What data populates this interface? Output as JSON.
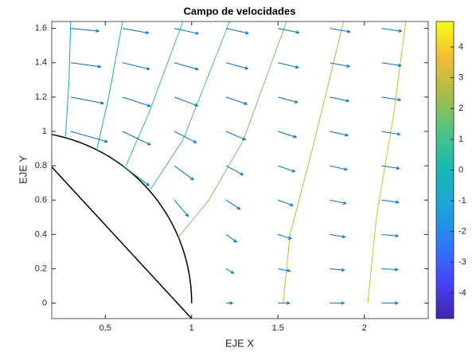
{
  "chart_data": {
    "type": "quiver",
    "title": "Campo de velocidades",
    "x_label": "EJE X",
    "y_label": "EJE Y",
    "xlim": [
      0.19,
      2.37
    ],
    "ylim": [
      -0.09,
      1.64
    ],
    "xticks": [
      0.5,
      1,
      1.5,
      2
    ],
    "yticks": [
      0,
      0.2,
      0.4,
      0.6,
      0.8,
      1,
      1.2,
      1.4,
      1.6
    ],
    "arrow_color": "#0072bd",
    "cylinder_radius": 1,
    "cylinder_color": "#000000",
    "x": [
      0.3,
      0.3,
      0.3,
      0.3,
      0.6,
      0.6,
      0.6,
      0.6,
      0.6,
      0.9,
      0.9,
      0.9,
      0.9,
      0.9,
      0.9,
      1.2,
      1.2,
      1.2,
      1.2,
      1.2,
      1.2,
      1.2,
      1.2,
      1.2,
      1.5,
      1.5,
      1.5,
      1.5,
      1.5,
      1.5,
      1.5,
      1.5,
      1.5,
      1.8,
      1.8,
      1.8,
      1.8,
      1.8,
      1.8,
      1.8,
      1.8,
      1.8,
      2.1,
      2.1,
      2.1,
      2.1,
      2.1,
      2.1,
      2.1,
      2.1,
      2.1
    ],
    "y": [
      1.0,
      1.2,
      1.4,
      1.6,
      0.8,
      1.0,
      1.2,
      1.4,
      1.6,
      0.6,
      0.8,
      1.0,
      1.2,
      1.4,
      1.6,
      0,
      0.2,
      0.4,
      0.6,
      0.8,
      1.0,
      1.2,
      1.4,
      1.6,
      0,
      0.2,
      0.4,
      0.6,
      0.8,
      1.0,
      1.2,
      1.4,
      1.6,
      0,
      0.2,
      0.4,
      0.6,
      0.8,
      1.0,
      1.2,
      1.4,
      1.6,
      0,
      0.2,
      0.4,
      0.6,
      0.8,
      1.0,
      1.2,
      1.4,
      1.6
    ],
    "u": [
      1.766,
      1.577,
      1.445,
      1.352,
      1.28,
      1.346,
      1.333,
      1.297,
      1.258,
      0.671,
      0.919,
      1.058,
      1.124,
      1.15,
      1.154,
      0.306,
      0.361,
      0.5,
      0.667,
      0.815,
      0.926,
      1.0,
      1.045,
      1.07,
      0.556,
      0.579,
      0.64,
      0.723,
      0.807,
      0.882,
      0.941,
      0.984,
      1.013,
      0.691,
      0.703,
      0.734,
      0.778,
      0.827,
      0.875,
      0.918,
      0.953,
      0.98,
      0.773,
      0.779,
      0.797,
      0.822,
      0.852,
      0.883,
      0.913,
      0.94,
      0.962
    ],
    "v": [
      -0.505,
      -0.308,
      -0.2,
      -0.137,
      -0.96,
      -0.649,
      -0.444,
      -0.312,
      -0.225,
      -0.789,
      -0.685,
      -0.549,
      -0.427,
      -0.328,
      -0.254,
      0,
      -0.219,
      -0.375,
      -0.444,
      -0.444,
      -0.403,
      -0.347,
      -0.291,
      -0.24,
      0,
      -0.114,
      -0.207,
      -0.264,
      -0.287,
      -0.284,
      -0.264,
      -0.237,
      -0.207,
      0,
      -0.067,
      -0.125,
      -0.167,
      -0.191,
      -0.2,
      -0.197,
      -0.186,
      -0.171,
      0,
      -0.042,
      -0.08,
      -0.111,
      -0.132,
      -0.143,
      -0.147,
      -0.145,
      -0.138
    ],
    "contours": [
      {
        "color": "#1ba0c8",
        "x": [
          0.27,
          0.29,
          0.3
        ],
        "y": [
          0.97,
          1.3,
          1.64
        ]
      },
      {
        "color": "#20a8b8",
        "x": [
          0.45,
          0.52,
          0.6
        ],
        "y": [
          0.89,
          1.2,
          1.64
        ]
      },
      {
        "color": "#33b5a0",
        "x": [
          0.62,
          0.75,
          0.95
        ],
        "y": [
          0.8,
          1.1,
          1.64
        ]
      },
      {
        "color": "#4cbb80",
        "x": [
          0.76,
          0.95,
          1.22
        ],
        "y": [
          0.66,
          0.95,
          1.64
        ]
      },
      {
        "color": "#80c060",
        "x": [
          0.92,
          1.1,
          1.3,
          1.55
        ],
        "y": [
          0.38,
          0.6,
          0.95,
          1.64
        ]
      },
      {
        "color": "#b0c040",
        "x": [
          1.53,
          1.57,
          1.7,
          1.88
        ],
        "y": [
          0,
          0.4,
          0.9,
          1.64
        ]
      },
      {
        "color": "#c8c030",
        "x": [
          2.02,
          2.07,
          2.17,
          2.24
        ],
        "y": [
          0,
          0.5,
          1.1,
          1.64
        ]
      }
    ],
    "colorbar": {
      "clim": [
        -4.83,
        4.83
      ],
      "ticks": [
        -4,
        -3,
        -2,
        -1,
        0,
        1,
        2,
        3,
        4
      ],
      "colormap": [
        "#3e26a8",
        "#4743f8",
        "#2c7bf6",
        "#1fa2db",
        "#16b7b4",
        "#4bc484",
        "#a5be4a",
        "#f2bb37",
        "#f9fb15"
      ]
    }
  }
}
